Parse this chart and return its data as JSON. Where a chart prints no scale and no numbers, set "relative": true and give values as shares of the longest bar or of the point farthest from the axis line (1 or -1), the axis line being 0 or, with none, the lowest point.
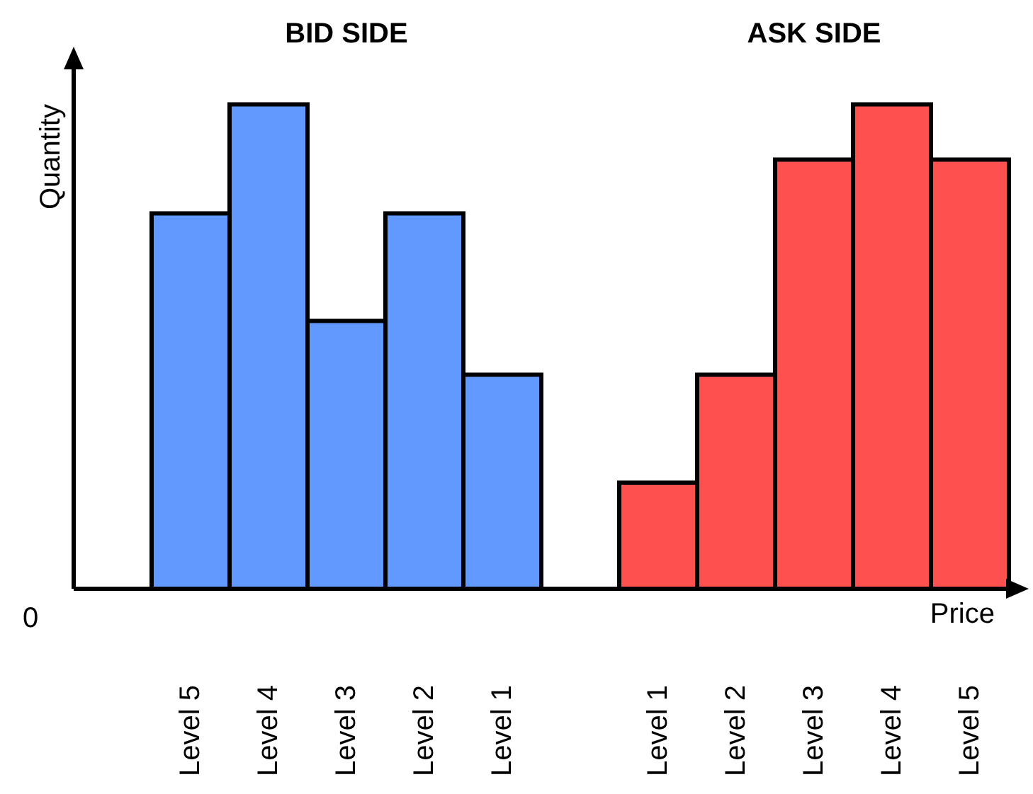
{
  "chart_data": {
    "type": "bar",
    "relative": true,
    "ylabel": "Quantity",
    "xlabel": "Price",
    "categories": [
      "Level 5",
      "Level 4",
      "Level 3",
      "Level 2",
      "Level 1",
      null,
      "Level 1",
      "Level 2",
      "Level 3",
      "Level 4",
      "Level 5"
    ],
    "values": [
      0.775,
      1,
      0.553,
      0.775,
      0.442,
      null,
      0.219,
      0.442,
      0.886,
      1,
      0.886
    ],
    "colors": [
      "#6199ff",
      "#6199ff",
      "#6199ff",
      "#6199ff",
      "#6199ff",
      "#6199ff",
      "#ff5050",
      "#ff5050",
      "#ff5050",
      "#ff5050",
      "#ff5050"
    ],
    "annotations": [
      "BID SIDE",
      "ASK SIDE",
      "0"
    ],
    "grid": false,
    "legend": false
  }
}
